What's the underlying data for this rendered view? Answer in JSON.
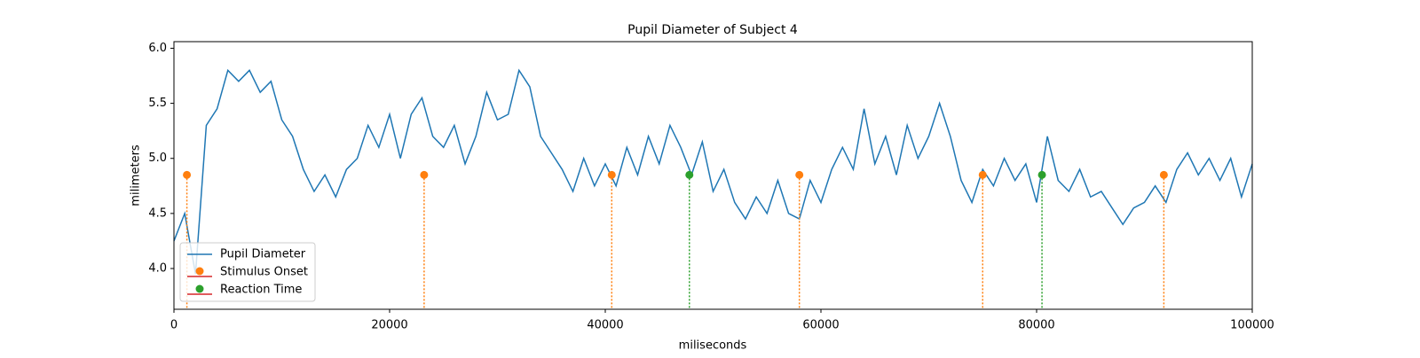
{
  "chart_data": {
    "type": "line",
    "title": "Pupil Diameter of Subject 4",
    "x_label": "miliseconds",
    "y_label": "milimeters",
    "xlim": [
      0,
      100000
    ],
    "ylim": [
      3.63,
      6.06
    ],
    "xticks": [
      0,
      20000,
      40000,
      60000,
      80000,
      100000
    ],
    "yticks": [
      {
        "value": 4,
        "label": "4.0"
      },
      4.5,
      {
        "value": 5,
        "label": "5.0"
      },
      5.5,
      {
        "value": 6,
        "label": "6.0"
      }
    ],
    "legend": "lower left",
    "series": [
      {
        "name": "Pupil Diameter",
        "color": "#1f77b4",
        "kind": "line",
        "x": [
          0,
          1000,
          2000,
          3000,
          4000,
          5000,
          6000,
          7000,
          8000,
          9000,
          10000,
          11000,
          12000,
          13000,
          14000,
          15000,
          16000,
          17000,
          18000,
          19000,
          20000,
          21000,
          22000,
          23000,
          24000,
          25000,
          26000,
          27000,
          28000,
          29000,
          30000,
          31000,
          32000,
          33000,
          34000,
          35000,
          36000,
          37000,
          38000,
          39000,
          40000,
          41000,
          42000,
          43000,
          44000,
          45000,
          46000,
          47000,
          48000,
          49000,
          50000,
          51000,
          52000,
          53000,
          54000,
          55000,
          56000,
          57000,
          58000,
          59000,
          60000,
          61000,
          62000,
          63000,
          64000,
          65000,
          66000,
          67000,
          68000,
          69000,
          70000,
          71000,
          72000,
          73000,
          74000,
          75000,
          76000,
          77000,
          78000,
          79000,
          80000,
          81000,
          82000,
          83000,
          84000,
          85000,
          86000,
          87000,
          88000,
          89000,
          90000,
          91000,
          92000,
          93000,
          94000,
          95000,
          96000,
          97000,
          98000,
          99000,
          100000
        ],
        "values": [
          4.25,
          4.5,
          3.95,
          5.3,
          5.45,
          5.8,
          5.7,
          5.8,
          5.6,
          5.7,
          5.35,
          5.2,
          4.9,
          4.7,
          4.85,
          4.65,
          4.9,
          5.0,
          5.3,
          5.1,
          5.4,
          5.0,
          5.4,
          5.55,
          5.2,
          5.1,
          5.3,
          4.95,
          5.2,
          5.6,
          5.35,
          5.4,
          5.8,
          5.65,
          5.2,
          5.05,
          4.9,
          4.7,
          5.0,
          4.75,
          4.95,
          4.75,
          5.1,
          4.85,
          5.2,
          4.95,
          5.3,
          5.1,
          4.85,
          5.15,
          4.7,
          4.9,
          4.6,
          4.45,
          4.65,
          4.5,
          4.8,
          4.5,
          4.45,
          4.8,
          4.6,
          4.9,
          5.1,
          4.9,
          5.45,
          4.95,
          5.2,
          4.85,
          5.3,
          5.0,
          5.2,
          5.5,
          5.2,
          4.8,
          4.6,
          4.9,
          4.75,
          5.0,
          4.8,
          4.95,
          4.6,
          5.2,
          4.8,
          4.7,
          4.9,
          4.65,
          4.7,
          4.55,
          4.4,
          4.55,
          4.6,
          4.75,
          4.6,
          4.9,
          5.05,
          4.85,
          5.0,
          4.8,
          5.0,
          4.65,
          4.95
        ]
      },
      {
        "name": "Stimulus Onset",
        "color": "#ff7f0e",
        "kind": "stem",
        "x": [
          1200,
          23200,
          40600,
          58000,
          75000,
          91800
        ],
        "values": [
          4.85,
          4.85,
          4.85,
          4.85,
          4.85,
          4.85
        ]
      },
      {
        "name": "Reaction Time",
        "color": "#2ca02c",
        "kind": "stem",
        "x": [
          47800,
          80500
        ],
        "values": [
          4.85,
          4.85
        ]
      }
    ]
  }
}
